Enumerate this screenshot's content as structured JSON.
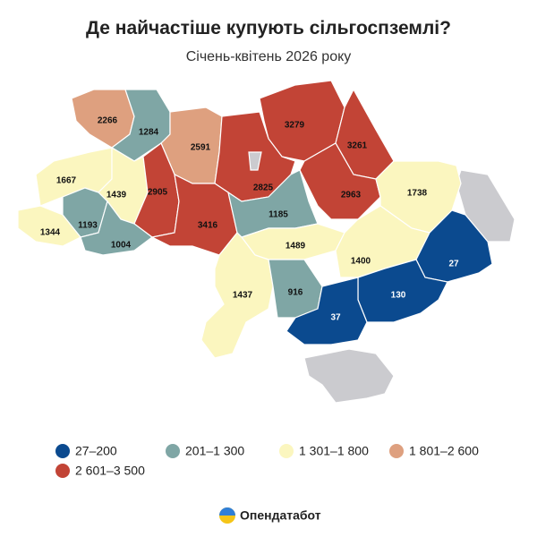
{
  "header": {
    "title": "Де найчастіше купують сільгоспземлі?",
    "subtitle": "Січень-квітень 2026 року"
  },
  "legend": [
    {
      "label": "27–200",
      "color": "#0b4a8f"
    },
    {
      "label": "201–1 300",
      "color": "#7fa6a5"
    },
    {
      "label": "1 301–1 800",
      "color": "#fbf6bf"
    },
    {
      "label": "1 801–2 600",
      "color": "#dea07f"
    },
    {
      "label": "2 601–3 500",
      "color": "#c24436"
    }
  ],
  "no_data_color": "#cbcbcf",
  "regions": [
    {
      "label": "2266",
      "class": 3
    },
    {
      "label": "1284",
      "class": 1
    },
    {
      "label": "2591",
      "class": 3
    },
    {
      "label": "3279",
      "class": 4
    },
    {
      "label": "3261",
      "class": 4
    },
    {
      "label": "1667",
      "class": 2
    },
    {
      "label": "1439",
      "class": 2
    },
    {
      "label": "2905",
      "class": 4
    },
    {
      "label": "2825",
      "class": 4
    },
    {
      "label": "2963",
      "class": 4
    },
    {
      "label": "1738",
      "class": 2
    },
    {
      "label": "1193",
      "class": 1
    },
    {
      "label": "1344",
      "class": 2
    },
    {
      "label": "1004",
      "class": 1
    },
    {
      "label": "3416",
      "class": 4
    },
    {
      "label": "1185",
      "class": 1
    },
    {
      "label": "1489",
      "class": 2
    },
    {
      "label": "1400",
      "class": 2
    },
    {
      "label": "27",
      "class": 0
    },
    {
      "label": "1437",
      "class": 2
    },
    {
      "label": "916",
      "class": 1
    },
    {
      "label": "130",
      "class": 0
    },
    {
      "label": "37",
      "class": 0
    }
  ],
  "brand": "Опендатабот"
}
